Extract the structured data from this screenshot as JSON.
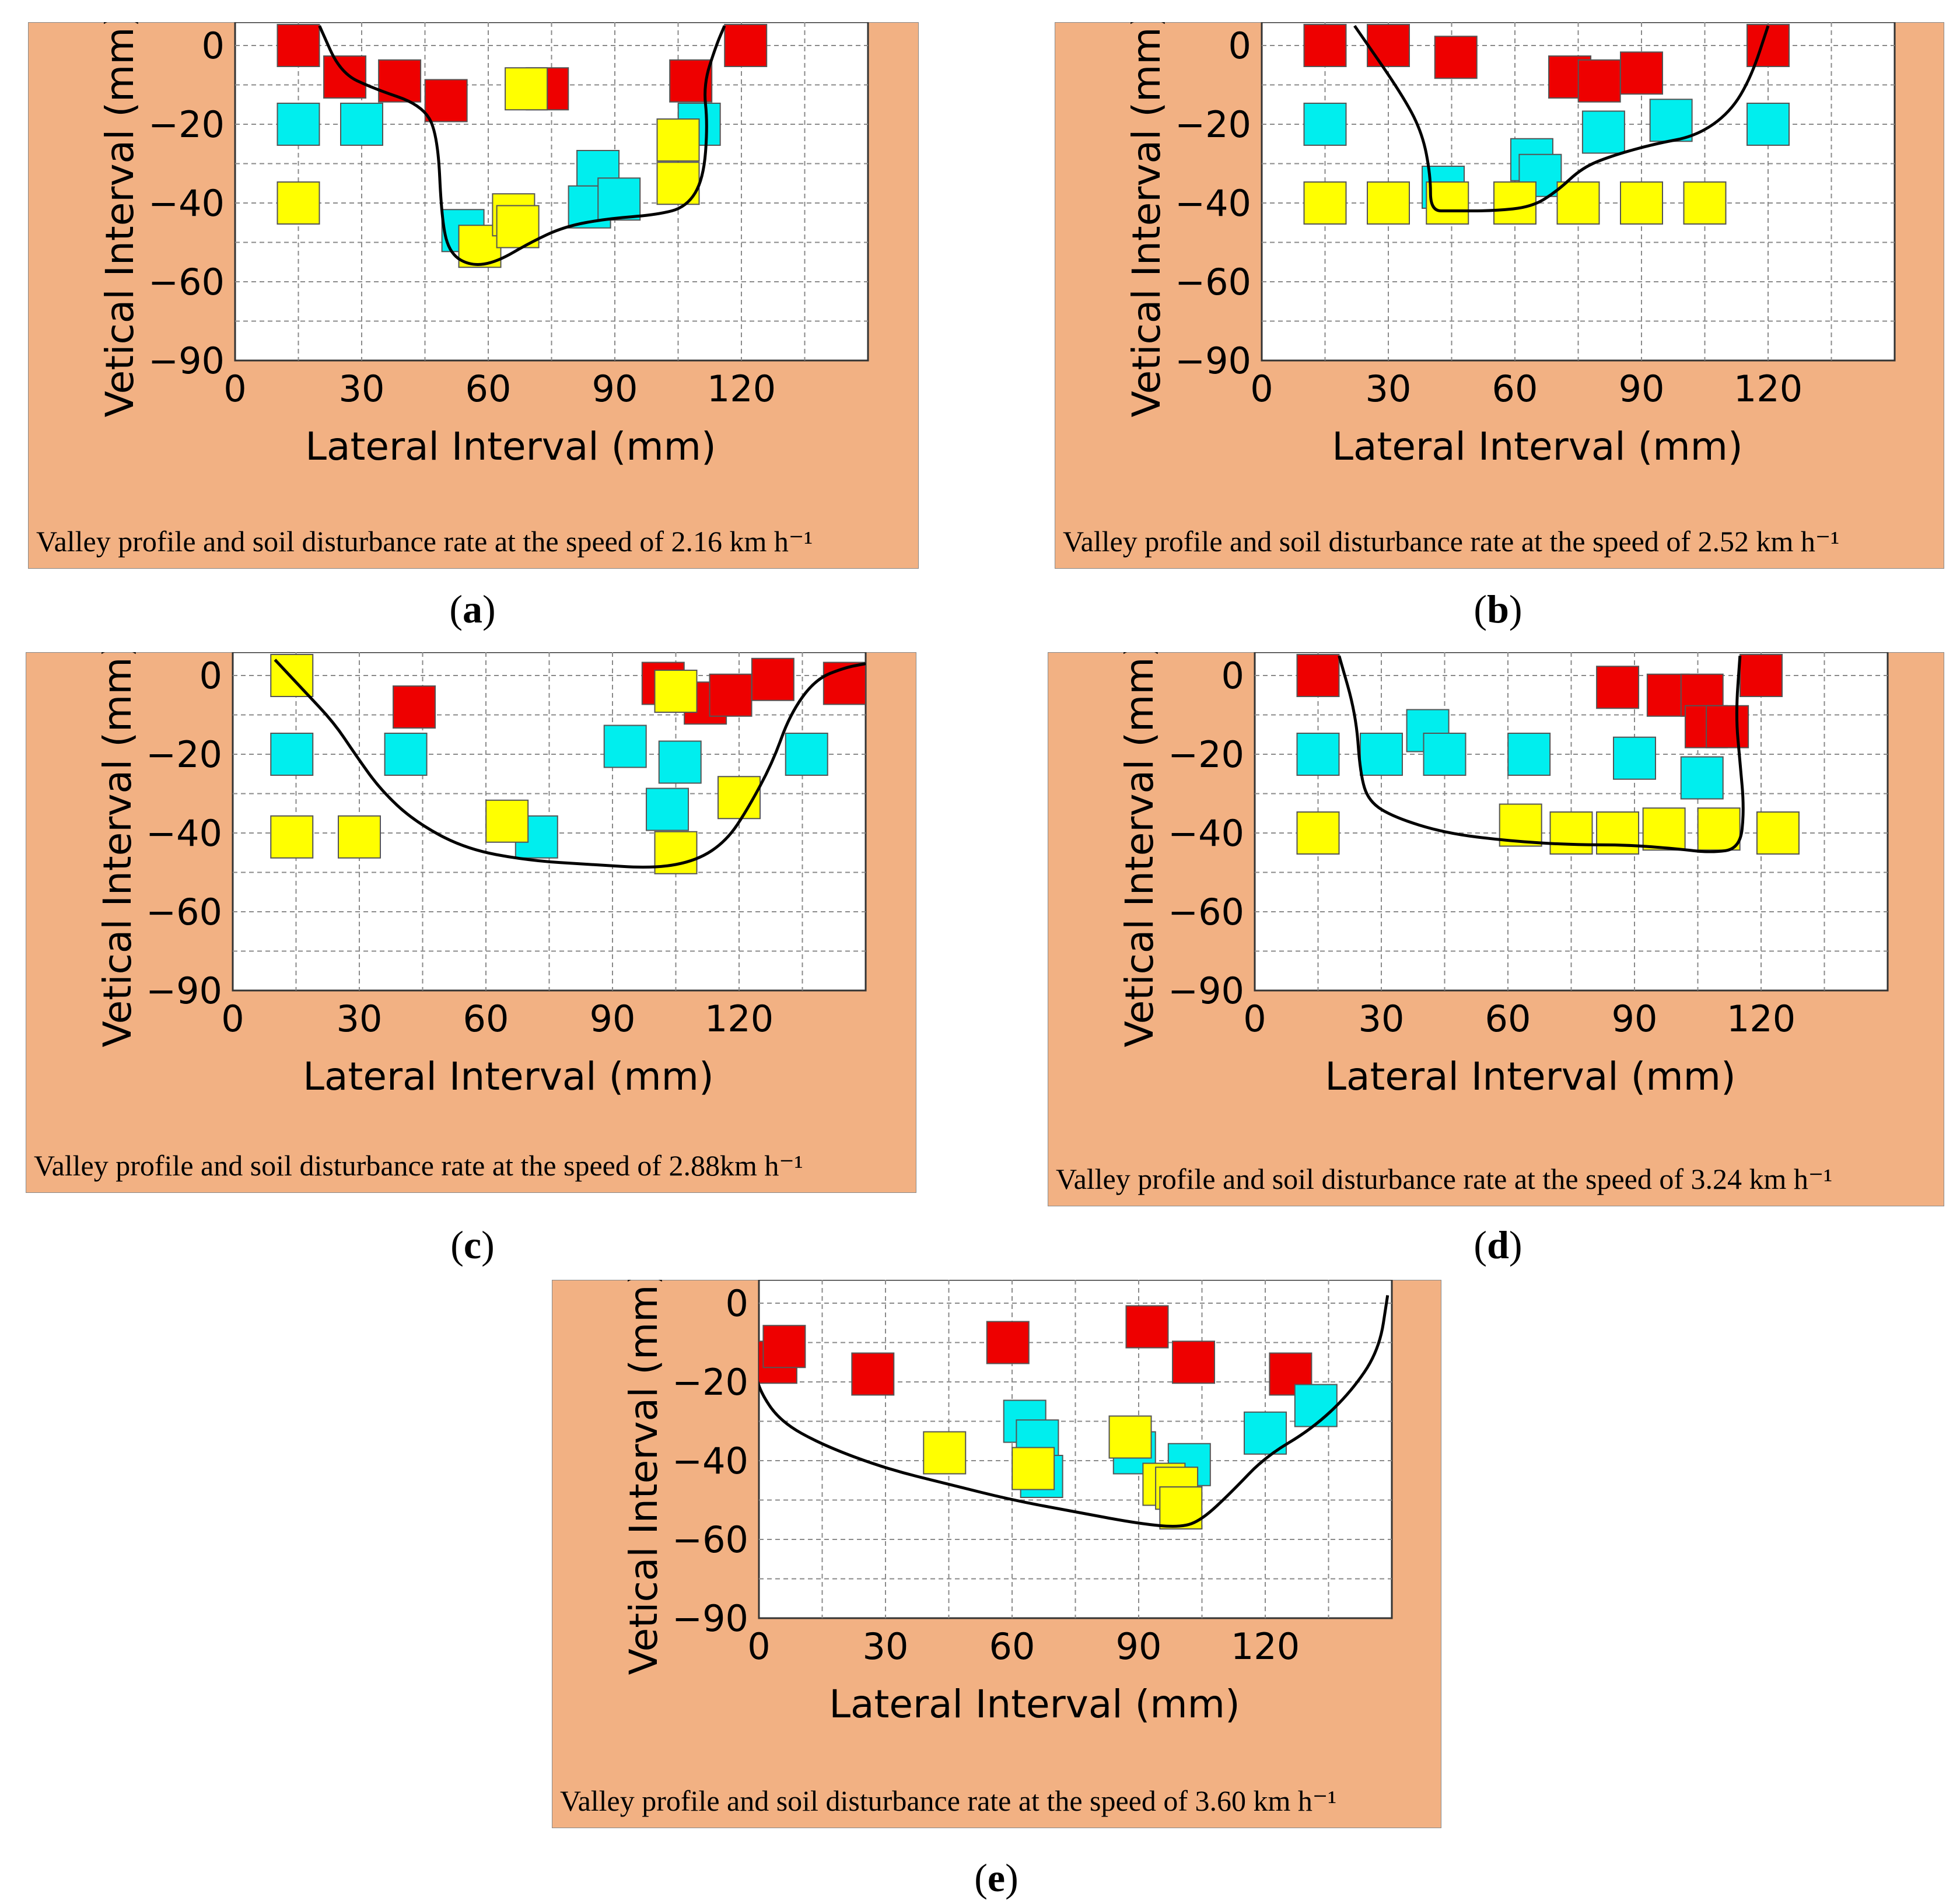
{
  "colors": {
    "panel_bg": "#F2B183",
    "red": "#EE0000",
    "cyan": "#00EEEE",
    "yellow": "#FFFF00",
    "line": "#000000",
    "grid": "#8A8A8A"
  },
  "chart_data": [
    {
      "id": "a",
      "type": "scatter",
      "letter": "a",
      "title": "Valley profile and soil disturbance rate at the speed of  2.16 km h⁻¹",
      "xlabel": "Lateral Interval (mm)",
      "ylabel": "Vetical Interval (mm)",
      "xticks": [
        "0",
        "30",
        "60",
        "90",
        "120"
      ],
      "yticks": [
        "0",
        "−20",
        "−40",
        "−60",
        "−90"
      ],
      "series": [
        {
          "color": "red",
          "points": [
            [
              15,
              0
            ],
            [
              26,
              -8
            ],
            [
              39,
              -9
            ],
            [
              50,
              -14
            ],
            [
              74,
              -11
            ],
            [
              108,
              -9
            ],
            [
              121,
              0
            ]
          ]
        },
        {
          "color": "cyan",
          "points": [
            [
              15,
              -20
            ],
            [
              30,
              -20
            ],
            [
              54,
              -47
            ],
            [
              86,
              -32
            ],
            [
              84,
              -41
            ],
            [
              91,
              -39
            ],
            [
              110,
              -20
            ]
          ]
        },
        {
          "color": "yellow",
          "points": [
            [
              15,
              -40
            ],
            [
              69,
              -11
            ],
            [
              58,
              -51
            ],
            [
              66,
              -43
            ],
            [
              67,
              -46
            ],
            [
              105,
              -24
            ],
            [
              105,
              -35
            ]
          ]
        }
      ],
      "profile": [
        [
          20,
          5
        ],
        [
          25,
          -7
        ],
        [
          33,
          -11
        ],
        [
          44,
          -15
        ],
        [
          48,
          -22
        ],
        [
          49,
          -45
        ],
        [
          51,
          -53
        ],
        [
          56,
          -56
        ],
        [
          62,
          -55
        ],
        [
          70,
          -50
        ],
        [
          78,
          -46
        ],
        [
          88,
          -44
        ],
        [
          100,
          -43
        ],
        [
          107,
          -41
        ],
        [
          111,
          -34
        ],
        [
          112,
          -20
        ],
        [
          111,
          -10
        ],
        [
          114,
          0
        ],
        [
          116,
          5
        ]
      ]
    },
    {
      "id": "b",
      "type": "scatter",
      "letter": "b",
      "title": "Valley profile and soil disturbance rate at the speed of  2.52 km h⁻¹",
      "xlabel": "Lateral Interval (mm)",
      "ylabel": "Vetical Interval (mm)",
      "xticks": [
        "0",
        "30",
        "60",
        "90",
        "120"
      ],
      "yticks": [
        "0",
        "−20",
        "−40",
        "−60",
        "−90"
      ],
      "series": [
        {
          "color": "red",
          "points": [
            [
              15,
              0
            ],
            [
              30,
              0
            ],
            [
              46,
              -3
            ],
            [
              73,
              -8
            ],
            [
              80,
              -9
            ],
            [
              90,
              -7
            ],
            [
              120,
              0
            ]
          ]
        },
        {
          "color": "cyan",
          "points": [
            [
              15,
              -20
            ],
            [
              43,
              -36
            ],
            [
              64,
              -29
            ],
            [
              66,
              -33
            ],
            [
              81,
              -22
            ],
            [
              97,
              -19
            ],
            [
              120,
              -20
            ]
          ]
        },
        {
          "color": "yellow",
          "points": [
            [
              15,
              -40
            ],
            [
              30,
              -40
            ],
            [
              44,
              -40
            ],
            [
              60,
              -40
            ],
            [
              75,
              -40
            ],
            [
              90,
              -40
            ],
            [
              105,
              -40
            ]
          ]
        }
      ],
      "profile": [
        [
          22,
          5
        ],
        [
          33,
          -12
        ],
        [
          38,
          -22
        ],
        [
          40,
          -33
        ],
        [
          40,
          -42
        ],
        [
          45,
          -42
        ],
        [
          55,
          -42
        ],
        [
          64,
          -41
        ],
        [
          70,
          -37
        ],
        [
          76,
          -31
        ],
        [
          83,
          -28
        ],
        [
          93,
          -25
        ],
        [
          103,
          -23
        ],
        [
          111,
          -17
        ],
        [
          116,
          -8
        ],
        [
          120,
          5
        ]
      ]
    },
    {
      "id": "c",
      "type": "scatter",
      "letter": "c",
      "title": "Valley profile and soil disturbance rate at the speed of  2.88km h⁻¹",
      "xlabel": "Lateral Interval (mm)",
      "ylabel": "Vetical Interval (mm)",
      "xticks": [
        "0",
        "30",
        "60",
        "90",
        "120"
      ],
      "yticks": [
        "0",
        "−20",
        "−40",
        "−60",
        "−90"
      ],
      "series": [
        {
          "color": "red",
          "points": [
            [
              43,
              -8
            ],
            [
              102,
              -2
            ],
            [
              112,
              -7
            ],
            [
              118,
              -5
            ],
            [
              128,
              -1
            ],
            [
              145,
              -2
            ]
          ]
        },
        {
          "color": "cyan",
          "points": [
            [
              14,
              -20
            ],
            [
              41,
              -20
            ],
            [
              93,
              -18
            ],
            [
              106,
              -22
            ],
            [
              103,
              -34
            ],
            [
              136,
              -20
            ],
            [
              72,
              -41
            ]
          ]
        },
        {
          "color": "yellow",
          "points": [
            [
              14,
              0
            ],
            [
              14,
              -41
            ],
            [
              30,
              -41
            ],
            [
              65,
              -37
            ],
            [
              105,
              -4
            ],
            [
              105,
              -45
            ],
            [
              120,
              -31
            ]
          ]
        }
      ],
      "profile": [
        [
          10,
          4
        ],
        [
          17,
          -4
        ],
        [
          24,
          -12
        ],
        [
          29,
          -20
        ],
        [
          35,
          -29
        ],
        [
          43,
          -37
        ],
        [
          55,
          -44
        ],
        [
          70,
          -47
        ],
        [
          85,
          -48
        ],
        [
          100,
          -49
        ],
        [
          110,
          -47
        ],
        [
          117,
          -42
        ],
        [
          122,
          -34
        ],
        [
          128,
          -22
        ],
        [
          132,
          -10
        ],
        [
          138,
          -1
        ],
        [
          145,
          2
        ],
        [
          150,
          3
        ]
      ]
    },
    {
      "id": "d",
      "type": "scatter",
      "letter": "d",
      "title": "Valley profile and soil disturbance rate at the speed of  3.24 km h⁻¹",
      "xlabel": "Lateral Interval (mm)",
      "ylabel": "Vetical Interval (mm)",
      "xticks": [
        "0",
        "30",
        "60",
        "90",
        "120"
      ],
      "yticks": [
        "0",
        "−20",
        "−40",
        "−60",
        "−90"
      ],
      "series": [
        {
          "color": "red",
          "points": [
            [
              15,
              0
            ],
            [
              86,
              -3
            ],
            [
              98,
              -5
            ],
            [
              106,
              -5
            ],
            [
              107,
              -13
            ],
            [
              112,
              -13
            ],
            [
              120,
              0
            ]
          ]
        },
        {
          "color": "cyan",
          "points": [
            [
              15,
              -20
            ],
            [
              30,
              -20
            ],
            [
              41,
              -14
            ],
            [
              45,
              -20
            ],
            [
              65,
              -20
            ],
            [
              90,
              -21
            ],
            [
              106,
              -26
            ]
          ]
        },
        {
          "color": "yellow",
          "points": [
            [
              15,
              -40
            ],
            [
              63,
              -38
            ],
            [
              75,
              -40
            ],
            [
              86,
              -40
            ],
            [
              97,
              -39
            ],
            [
              110,
              -39
            ],
            [
              124,
              -40
            ]
          ]
        }
      ],
      "profile": [
        [
          20,
          5
        ],
        [
          24,
          -10
        ],
        [
          25,
          -25
        ],
        [
          27,
          -32
        ],
        [
          33,
          -36
        ],
        [
          45,
          -40
        ],
        [
          60,
          -42
        ],
        [
          75,
          -43
        ],
        [
          88,
          -43
        ],
        [
          100,
          -44
        ],
        [
          108,
          -45
        ],
        [
          115,
          -44
        ],
        [
          116,
          -34
        ],
        [
          115,
          -22
        ],
        [
          114,
          -10
        ],
        [
          115,
          5
        ]
      ]
    },
    {
      "id": "e",
      "type": "scatter",
      "letter": "e",
      "title": "Valley profile and soil disturbance rate at the speed of  3.60 km h⁻¹",
      "xlabel": "Lateral Interval (mm)",
      "ylabel": "Vetical Interval (mm)",
      "xticks": [
        "0",
        "30",
        "60",
        "90",
        "120"
      ],
      "yticks": [
        "0",
        "−20",
        "−40",
        "−60",
        "−90"
      ],
      "series": [
        {
          "color": "red",
          "points": [
            [
              4,
              -15
            ],
            [
              6,
              -11
            ],
            [
              27,
              -18
            ],
            [
              59,
              -10
            ],
            [
              92,
              -6
            ],
            [
              103,
              -15
            ],
            [
              126,
              -18
            ]
          ]
        },
        {
          "color": "cyan",
          "points": [
            [
              63,
              -30
            ],
            [
              66,
              -35
            ],
            [
              67,
              -44
            ],
            [
              89,
              -38
            ],
            [
              102,
              -41
            ],
            [
              120,
              -33
            ],
            [
              132,
              -26
            ]
          ]
        },
        {
          "color": "yellow",
          "points": [
            [
              44,
              -38
            ],
            [
              65,
              -42
            ],
            [
              88,
              -34
            ],
            [
              96,
              -46
            ],
            [
              99,
              -47
            ],
            [
              100,
              -52
            ]
          ]
        }
      ],
      "profile": [
        [
          -2,
          2
        ],
        [
          -1,
          -16
        ],
        [
          0,
          -22
        ],
        [
          5,
          -30
        ],
        [
          15,
          -36
        ],
        [
          30,
          -42
        ],
        [
          45,
          -46
        ],
        [
          60,
          -50
        ],
        [
          75,
          -53
        ],
        [
          90,
          -56
        ],
        [
          100,
          -57
        ],
        [
          105,
          -55
        ],
        [
          112,
          -48
        ],
        [
          120,
          -39
        ],
        [
          131,
          -32
        ],
        [
          140,
          -23
        ],
        [
          147,
          -12
        ],
        [
          149,
          2
        ]
      ]
    }
  ]
}
